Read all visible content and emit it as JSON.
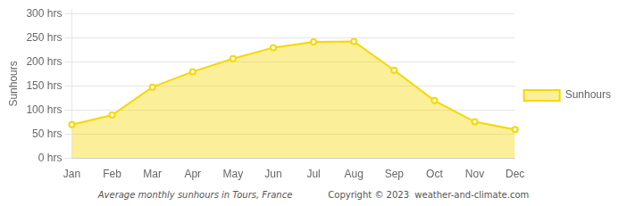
{
  "chart_data": {
    "type": "area",
    "categories": [
      "Jan",
      "Feb",
      "Mar",
      "Apr",
      "May",
      "Jun",
      "Jul",
      "Aug",
      "Sep",
      "Oct",
      "Nov",
      "Dec"
    ],
    "series": [
      {
        "name": "Sunhours",
        "color": "#F5D800",
        "marker": "circle",
        "values": [
          70,
          90,
          148,
          180,
          207,
          230,
          242,
          243,
          183,
          120,
          76,
          60
        ]
      }
    ],
    "ylabel": "Sunhours",
    "ylim": [
      0,
      310
    ],
    "yticks": [
      {
        "value": 0,
        "label": "0 hrs"
      },
      {
        "value": 50,
        "label": "50 hrs"
      },
      {
        "value": 100,
        "label": "100 hrs"
      },
      {
        "value": 150,
        "label": "150 hrs"
      },
      {
        "value": 200,
        "label": "200 hrs"
      },
      {
        "value": 250,
        "label": "250 hrs"
      },
      {
        "value": 300,
        "label": "300 hrs"
      }
    ],
    "grid": true,
    "legend": "right",
    "annotations": [
      "Average monthly sunhours in Tours, France",
      "Copyright © 2023  weather-and-climate.com"
    ]
  }
}
